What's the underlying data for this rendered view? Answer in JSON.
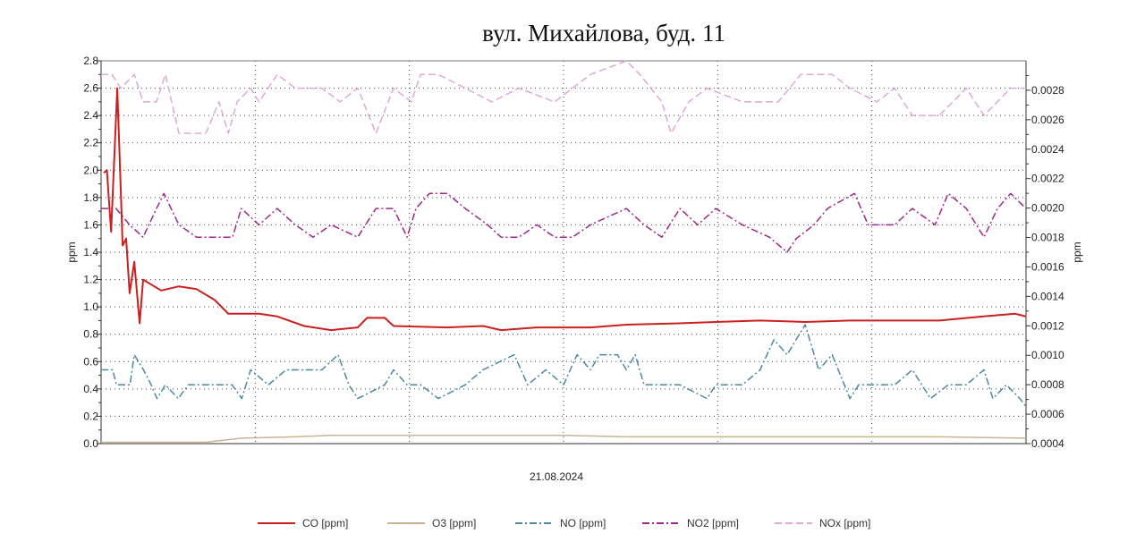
{
  "title": "вул. Михайлова, буд. 11",
  "chart_data": {
    "type": "line",
    "title": "вул. Михайлова, буд. 11",
    "xlabel": "21.08.2024",
    "x_unit": "hour of day",
    "xlim": [
      0,
      24
    ],
    "ylabel_left": "ppm",
    "ylabel_right": "ppm",
    "ylim_left": [
      0,
      2.8
    ],
    "ylim_right": [
      0.0004,
      0.003
    ],
    "left_ticks": [
      "0.0",
      "0.2",
      "0.4",
      "0.6",
      "0.8",
      "1.0",
      "1.2",
      "1.4",
      "1.6",
      "1.8",
      "2.0",
      "2.2",
      "2.4",
      "2.6",
      "2.8"
    ],
    "right_ticks": [
      "0.0004",
      "0.0006",
      "0.0008",
      "0.0010",
      "0.0012",
      "0.0014",
      "0.0016",
      "0.0018",
      "0.0020",
      "0.0022",
      "0.0024",
      "0.0026",
      "0.0028"
    ],
    "grid": true,
    "legend_position": "bottom",
    "series": [
      {
        "name": "CO [ppm]",
        "color": "#cc1f1f",
        "style": "solid",
        "points": [
          [
            0.07,
            1.98
          ],
          [
            0.15,
            2.0
          ],
          [
            0.26,
            1.55
          ],
          [
            0.42,
            2.6
          ],
          [
            0.56,
            1.45
          ],
          [
            0.65,
            1.5
          ],
          [
            0.74,
            1.1
          ],
          [
            0.86,
            1.33
          ],
          [
            1.0,
            0.88
          ],
          [
            1.09,
            1.2
          ],
          [
            1.32,
            1.16
          ],
          [
            1.56,
            1.12
          ],
          [
            2.02,
            1.15
          ],
          [
            2.48,
            1.13
          ],
          [
            2.95,
            1.05
          ],
          [
            3.3,
            0.95
          ],
          [
            4.1,
            0.95
          ],
          [
            4.57,
            0.93
          ],
          [
            5.27,
            0.86
          ],
          [
            5.97,
            0.83
          ],
          [
            6.66,
            0.85
          ],
          [
            6.9,
            0.92
          ],
          [
            7.36,
            0.92
          ],
          [
            7.59,
            0.86
          ],
          [
            8.98,
            0.85
          ],
          [
            9.91,
            0.86
          ],
          [
            10.38,
            0.83
          ],
          [
            11.3,
            0.85
          ],
          [
            12.7,
            0.85
          ],
          [
            13.63,
            0.87
          ],
          [
            15.0,
            0.88
          ],
          [
            15.95,
            0.89
          ],
          [
            17.1,
            0.9
          ],
          [
            18.27,
            0.89
          ],
          [
            19.43,
            0.9
          ],
          [
            21.75,
            0.9
          ],
          [
            22.9,
            0.93
          ],
          [
            23.72,
            0.95
          ],
          [
            24,
            0.93
          ]
        ]
      },
      {
        "name": "O3 [ppm]",
        "color": "#c8b491",
        "style": "solid",
        "points": [
          [
            0,
            0.01
          ],
          [
            2.72,
            0.01
          ],
          [
            3.65,
            0.04
          ],
          [
            5.04,
            0.05
          ],
          [
            5.97,
            0.06
          ],
          [
            12.0,
            0.06
          ],
          [
            13.63,
            0.05
          ],
          [
            21.75,
            0.05
          ],
          [
            24,
            0.04
          ]
        ]
      },
      {
        "name": "NO [ppm]",
        "color": "#4a8aa0",
        "style": "dashdot",
        "points": [
          [
            0,
            0.54
          ],
          [
            0.3,
            0.54
          ],
          [
            0.4,
            0.43
          ],
          [
            0.75,
            0.43
          ],
          [
            0.86,
            0.65
          ],
          [
            1.1,
            0.54
          ],
          [
            1.3,
            0.43
          ],
          [
            1.45,
            0.33
          ],
          [
            1.67,
            0.43
          ],
          [
            2.0,
            0.33
          ],
          [
            2.26,
            0.43
          ],
          [
            3.4,
            0.43
          ],
          [
            3.65,
            0.33
          ],
          [
            3.88,
            0.54
          ],
          [
            4.34,
            0.43
          ],
          [
            4.8,
            0.54
          ],
          [
            5.73,
            0.54
          ],
          [
            6.15,
            0.65
          ],
          [
            6.43,
            0.43
          ],
          [
            6.66,
            0.33
          ],
          [
            7.36,
            0.43
          ],
          [
            7.59,
            0.54
          ],
          [
            7.94,
            0.43
          ],
          [
            8.29,
            0.43
          ],
          [
            8.75,
            0.33
          ],
          [
            9.45,
            0.43
          ],
          [
            9.91,
            0.54
          ],
          [
            10.72,
            0.65
          ],
          [
            11.07,
            0.43
          ],
          [
            11.54,
            0.54
          ],
          [
            12.0,
            0.43
          ],
          [
            12.35,
            0.65
          ],
          [
            12.7,
            0.54
          ],
          [
            12.93,
            0.65
          ],
          [
            13.4,
            0.65
          ],
          [
            13.63,
            0.54
          ],
          [
            13.86,
            0.65
          ],
          [
            14.09,
            0.43
          ],
          [
            15.02,
            0.43
          ],
          [
            15.72,
            0.33
          ],
          [
            15.95,
            0.43
          ],
          [
            16.64,
            0.43
          ],
          [
            17.1,
            0.54
          ],
          [
            17.46,
            0.76
          ],
          [
            17.8,
            0.65
          ],
          [
            18.27,
            0.87
          ],
          [
            18.62,
            0.54
          ],
          [
            18.97,
            0.65
          ],
          [
            19.43,
            0.33
          ],
          [
            19.66,
            0.43
          ],
          [
            20.59,
            0.43
          ],
          [
            21.05,
            0.54
          ],
          [
            21.52,
            0.33
          ],
          [
            21.98,
            0.43
          ],
          [
            22.45,
            0.43
          ],
          [
            22.91,
            0.54
          ],
          [
            23.14,
            0.33
          ],
          [
            23.49,
            0.43
          ],
          [
            23.84,
            0.33
          ],
          [
            24,
            0.27
          ]
        ]
      },
      {
        "name": "NO2 [ppm]",
        "color": "#a0278a",
        "style": "dashdot",
        "points": [
          [
            0,
            1.72
          ],
          [
            0.39,
            1.72
          ],
          [
            0.74,
            1.6
          ],
          [
            1.09,
            1.51
          ],
          [
            1.44,
            1.72
          ],
          [
            1.63,
            1.83
          ],
          [
            2.02,
            1.6
          ],
          [
            2.48,
            1.51
          ],
          [
            3.41,
            1.51
          ],
          [
            3.64,
            1.72
          ],
          [
            4.1,
            1.6
          ],
          [
            4.57,
            1.72
          ],
          [
            5.04,
            1.6
          ],
          [
            5.5,
            1.51
          ],
          [
            5.97,
            1.6
          ],
          [
            6.66,
            1.51
          ],
          [
            7.13,
            1.72
          ],
          [
            7.59,
            1.72
          ],
          [
            7.94,
            1.51
          ],
          [
            8.17,
            1.72
          ],
          [
            8.52,
            1.83
          ],
          [
            8.98,
            1.83
          ],
          [
            9.45,
            1.72
          ],
          [
            10.03,
            1.6
          ],
          [
            10.38,
            1.51
          ],
          [
            10.84,
            1.51
          ],
          [
            11.31,
            1.6
          ],
          [
            11.77,
            1.51
          ],
          [
            12.23,
            1.51
          ],
          [
            12.7,
            1.6
          ],
          [
            13.63,
            1.72
          ],
          [
            14.09,
            1.6
          ],
          [
            14.55,
            1.51
          ],
          [
            15.02,
            1.72
          ],
          [
            15.48,
            1.6
          ],
          [
            15.95,
            1.72
          ],
          [
            16.64,
            1.6
          ],
          [
            17.34,
            1.51
          ],
          [
            17.8,
            1.4
          ],
          [
            18.04,
            1.5
          ],
          [
            18.5,
            1.6
          ],
          [
            18.85,
            1.72
          ],
          [
            19.55,
            1.83
          ],
          [
            19.9,
            1.6
          ],
          [
            20.59,
            1.6
          ],
          [
            21.05,
            1.72
          ],
          [
            21.64,
            1.6
          ],
          [
            21.98,
            1.83
          ],
          [
            22.45,
            1.72
          ],
          [
            22.91,
            1.51
          ],
          [
            23.26,
            1.72
          ],
          [
            23.6,
            1.83
          ],
          [
            24,
            1.72
          ]
        ]
      },
      {
        "name": "NOx [ppm]",
        "color": "#e0a8d8",
        "style": "dash",
        "points": [
          [
            0,
            2.7
          ],
          [
            0.28,
            2.7
          ],
          [
            0.51,
            2.6
          ],
          [
            0.86,
            2.7
          ],
          [
            1.09,
            2.5
          ],
          [
            1.44,
            2.5
          ],
          [
            1.67,
            2.7
          ],
          [
            2.02,
            2.27
          ],
          [
            2.37,
            2.27
          ],
          [
            2.72,
            2.27
          ],
          [
            3.06,
            2.5
          ],
          [
            3.3,
            2.27
          ],
          [
            3.53,
            2.5
          ],
          [
            3.88,
            2.6
          ],
          [
            4.1,
            2.5
          ],
          [
            4.57,
            2.7
          ],
          [
            5.04,
            2.6
          ],
          [
            5.73,
            2.6
          ],
          [
            6.2,
            2.5
          ],
          [
            6.66,
            2.6
          ],
          [
            7.13,
            2.27
          ],
          [
            7.59,
            2.6
          ],
          [
            8.05,
            2.5
          ],
          [
            8.29,
            2.7
          ],
          [
            8.75,
            2.7
          ],
          [
            9.45,
            2.6
          ],
          [
            10.14,
            2.5
          ],
          [
            10.84,
            2.6
          ],
          [
            11.77,
            2.5
          ],
          [
            12.23,
            2.6
          ],
          [
            12.7,
            2.7
          ],
          [
            13.63,
            2.8
          ],
          [
            13.98,
            2.7
          ],
          [
            14.55,
            2.5
          ],
          [
            14.79,
            2.27
          ],
          [
            15.25,
            2.5
          ],
          [
            15.72,
            2.6
          ],
          [
            16.64,
            2.5
          ],
          [
            17.57,
            2.5
          ],
          [
            18.15,
            2.7
          ],
          [
            18.97,
            2.7
          ],
          [
            19.43,
            2.6
          ],
          [
            20.13,
            2.5
          ],
          [
            20.59,
            2.6
          ],
          [
            21.05,
            2.4
          ],
          [
            21.75,
            2.4
          ],
          [
            22.45,
            2.6
          ],
          [
            22.91,
            2.4
          ],
          [
            23.6,
            2.6
          ],
          [
            24,
            2.6
          ]
        ]
      }
    ]
  }
}
